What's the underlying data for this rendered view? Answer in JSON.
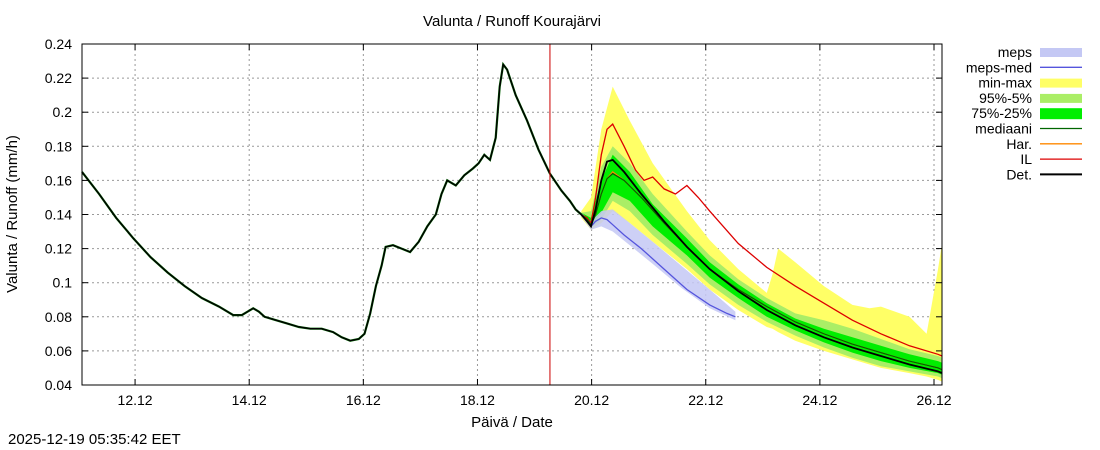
{
  "chart_data": {
    "type": "line",
    "title": "Valunta / Runoff  Kourajärvi",
    "xlabel": "Päivä / Date",
    "ylabel": "Valunta / Runoff (mm/h)",
    "ylim": [
      0.04,
      0.24
    ],
    "xlim_days": [
      0,
      15.07
    ],
    "y_ticks": [
      0.04,
      0.06,
      0.08,
      0.1,
      0.12,
      0.14,
      0.16,
      0.18,
      0.2,
      0.22,
      0.24
    ],
    "x_ticks": [
      {
        "label": "12.12",
        "day": 0.93
      },
      {
        "label": "14.12",
        "day": 2.93
      },
      {
        "label": "16.12",
        "day": 4.93
      },
      {
        "label": "18.12",
        "day": 6.93
      },
      {
        "label": "20.12",
        "day": 8.93
      },
      {
        "label": "22.12",
        "day": 10.93
      },
      {
        "label": "24.12",
        "day": 12.93
      },
      {
        "label": "26.12",
        "day": 14.93
      }
    ],
    "grid": true,
    "forecast_start_day": 8.2,
    "legend_position": "right",
    "colors": {
      "meps": "#c4c8f4",
      "meps_med": "#5555dd",
      "minmax": "#ffff66",
      "p95_5": "#aaee66",
      "p75_25": "#00ee00",
      "mediaani": "#006600",
      "har": "#ff8800",
      "il": "#dd0000",
      "det": "#000000",
      "now_line": "#cc0000",
      "grid": "#999999"
    },
    "legend": [
      {
        "key": "meps",
        "label": "meps",
        "kind": "band"
      },
      {
        "key": "meps_med",
        "label": "meps-med",
        "kind": "line"
      },
      {
        "key": "minmax",
        "label": "min-max",
        "kind": "band"
      },
      {
        "key": "p95_5",
        "label": "95%-5%",
        "kind": "band"
      },
      {
        "key": "p75_25",
        "label": "75%-25%",
        "kind": "bandthick"
      },
      {
        "key": "mediaani",
        "label": "mediaani",
        "kind": "line"
      },
      {
        "key": "har",
        "label": "Har.",
        "kind": "line"
      },
      {
        "key": "il",
        "label": "IL",
        "kind": "line"
      },
      {
        "key": "det",
        "label": "Det.",
        "kind": "thickline"
      }
    ],
    "series": {
      "observed": [
        [
          0,
          0.165
        ],
        [
          0.3,
          0.152
        ],
        [
          0.6,
          0.138
        ],
        [
          0.9,
          0.126
        ],
        [
          1.2,
          0.115
        ],
        [
          1.5,
          0.106
        ],
        [
          1.8,
          0.098
        ],
        [
          2.1,
          0.091
        ],
        [
          2.4,
          0.086
        ],
        [
          2.65,
          0.081
        ],
        [
          2.8,
          0.081
        ],
        [
          2.9,
          0.083
        ],
        [
          3.0,
          0.085
        ],
        [
          3.1,
          0.083
        ],
        [
          3.2,
          0.08
        ],
        [
          3.4,
          0.078
        ],
        [
          3.6,
          0.076
        ],
        [
          3.8,
          0.074
        ],
        [
          4.0,
          0.073
        ],
        [
          4.2,
          0.073
        ],
        [
          4.4,
          0.071
        ],
        [
          4.55,
          0.068
        ],
        [
          4.7,
          0.066
        ],
        [
          4.85,
          0.067
        ],
        [
          4.95,
          0.07
        ],
        [
          5.05,
          0.082
        ],
        [
          5.15,
          0.098
        ],
        [
          5.25,
          0.11
        ],
        [
          5.32,
          0.121
        ],
        [
          5.45,
          0.122
        ],
        [
          5.6,
          0.12
        ],
        [
          5.75,
          0.118
        ],
        [
          5.9,
          0.124
        ],
        [
          6.05,
          0.133
        ],
        [
          6.2,
          0.14
        ],
        [
          6.3,
          0.152
        ],
        [
          6.4,
          0.16
        ],
        [
          6.55,
          0.157
        ],
        [
          6.7,
          0.163
        ],
        [
          6.85,
          0.167
        ],
        [
          6.95,
          0.17
        ],
        [
          7.05,
          0.175
        ],
        [
          7.15,
          0.172
        ],
        [
          7.25,
          0.185
        ],
        [
          7.32,
          0.215
        ],
        [
          7.38,
          0.228
        ],
        [
          7.45,
          0.225
        ],
        [
          7.6,
          0.21
        ],
        [
          7.8,
          0.195
        ],
        [
          8.0,
          0.178
        ],
        [
          8.2,
          0.164
        ],
        [
          8.4,
          0.154
        ],
        [
          8.55,
          0.148
        ],
        [
          8.65,
          0.143
        ],
        [
          8.75,
          0.14
        ]
      ],
      "det": [
        [
          8.75,
          0.14
        ],
        [
          8.85,
          0.136
        ],
        [
          8.92,
          0.133
        ],
        [
          9.0,
          0.143
        ],
        [
          9.1,
          0.16
        ],
        [
          9.2,
          0.171
        ],
        [
          9.3,
          0.172
        ],
        [
          9.5,
          0.165
        ],
        [
          9.8,
          0.152
        ],
        [
          10.2,
          0.136
        ],
        [
          10.6,
          0.121
        ],
        [
          11.0,
          0.108
        ],
        [
          11.5,
          0.095
        ],
        [
          12.0,
          0.084
        ],
        [
          12.5,
          0.075
        ],
        [
          13.0,
          0.068
        ],
        [
          13.5,
          0.062
        ],
        [
          14.0,
          0.057
        ],
        [
          14.5,
          0.052
        ],
        [
          15.0,
          0.048
        ],
        [
          15.07,
          0.047
        ]
      ],
      "mediaani": [
        [
          8.75,
          0.14
        ],
        [
          8.85,
          0.137
        ],
        [
          8.92,
          0.134
        ],
        [
          9.0,
          0.14
        ],
        [
          9.1,
          0.152
        ],
        [
          9.2,
          0.161
        ],
        [
          9.3,
          0.164
        ],
        [
          9.5,
          0.16
        ],
        [
          9.8,
          0.15
        ],
        [
          10.2,
          0.135
        ],
        [
          10.6,
          0.121
        ],
        [
          11.0,
          0.108
        ],
        [
          11.5,
          0.096
        ],
        [
          12.0,
          0.086
        ],
        [
          12.5,
          0.077
        ],
        [
          13.0,
          0.07
        ],
        [
          13.5,
          0.064
        ],
        [
          14.0,
          0.059
        ],
        [
          14.5,
          0.054
        ],
        [
          15.0,
          0.05
        ],
        [
          15.07,
          0.049
        ]
      ],
      "har": [
        [
          8.75,
          0.14
        ],
        [
          8.85,
          0.137
        ],
        [
          8.92,
          0.134
        ],
        [
          9.0,
          0.14
        ],
        [
          9.1,
          0.152
        ],
        [
          9.2,
          0.161
        ],
        [
          9.3,
          0.165
        ],
        [
          9.5,
          0.16
        ],
        [
          9.8,
          0.15
        ],
        [
          10.2,
          0.135
        ],
        [
          10.6,
          0.121
        ],
        [
          11.0,
          0.108
        ],
        [
          11.5,
          0.096
        ],
        [
          12.0,
          0.086
        ],
        [
          12.5,
          0.077
        ],
        [
          13.0,
          0.07
        ],
        [
          13.5,
          0.064
        ],
        [
          14.0,
          0.059
        ],
        [
          14.5,
          0.054
        ],
        [
          15.0,
          0.05
        ],
        [
          15.07,
          0.049
        ]
      ],
      "il": [
        [
          8.75,
          0.14
        ],
        [
          8.85,
          0.138
        ],
        [
          8.92,
          0.135
        ],
        [
          9.0,
          0.15
        ],
        [
          9.1,
          0.175
        ],
        [
          9.2,
          0.19
        ],
        [
          9.3,
          0.193
        ],
        [
          9.5,
          0.18
        ],
        [
          9.7,
          0.166
        ],
        [
          9.85,
          0.16
        ],
        [
          10.0,
          0.162
        ],
        [
          10.2,
          0.155
        ],
        [
          10.4,
          0.152
        ],
        [
          10.6,
          0.157
        ],
        [
          10.8,
          0.15
        ],
        [
          11.0,
          0.142
        ],
        [
          11.5,
          0.123
        ],
        [
          12.0,
          0.109
        ],
        [
          12.5,
          0.098
        ],
        [
          13.0,
          0.088
        ],
        [
          13.5,
          0.078
        ],
        [
          14.0,
          0.07
        ],
        [
          14.5,
          0.063
        ],
        [
          15.0,
          0.058
        ],
        [
          15.07,
          0.057
        ]
      ],
      "meps_med": [
        [
          8.75,
          0.14
        ],
        [
          8.85,
          0.137
        ],
        [
          8.92,
          0.133
        ],
        [
          9.0,
          0.136
        ],
        [
          9.1,
          0.138
        ],
        [
          9.2,
          0.137
        ],
        [
          9.3,
          0.134
        ],
        [
          9.5,
          0.128
        ],
        [
          9.8,
          0.12
        ],
        [
          10.2,
          0.108
        ],
        [
          10.6,
          0.096
        ],
        [
          11.0,
          0.087
        ],
        [
          11.3,
          0.082
        ],
        [
          11.45,
          0.08
        ]
      ]
    },
    "bands": {
      "minmax": {
        "x": [
          8.75,
          8.92,
          9.1,
          9.3,
          9.6,
          10.0,
          10.6,
          11.0,
          11.5,
          12.0,
          12.1,
          12.2,
          12.5,
          13.0,
          13.5,
          13.8,
          14.0,
          14.5,
          14.8,
          15.0,
          15.07
        ],
        "high": [
          0.142,
          0.15,
          0.19,
          0.215,
          0.195,
          0.17,
          0.142,
          0.125,
          0.108,
          0.094,
          0.105,
          0.12,
          0.112,
          0.098,
          0.087,
          0.085,
          0.086,
          0.08,
          0.07,
          0.108,
          0.123
        ],
        "low": [
          0.138,
          0.131,
          0.135,
          0.142,
          0.135,
          0.124,
          0.108,
          0.096,
          0.084,
          0.074,
          0.073,
          0.071,
          0.066,
          0.06,
          0.055,
          0.052,
          0.05,
          0.047,
          0.045,
          0.043,
          0.042
        ]
      },
      "p95_5": {
        "x": [
          8.75,
          8.92,
          9.1,
          9.3,
          9.6,
          10.0,
          10.6,
          11.0,
          11.5,
          12.0,
          12.5,
          13.0,
          13.5,
          14.0,
          14.5,
          15.0,
          15.07
        ],
        "high": [
          0.141,
          0.142,
          0.168,
          0.18,
          0.17,
          0.152,
          0.13,
          0.116,
          0.102,
          0.091,
          0.082,
          0.078,
          0.073,
          0.067,
          0.061,
          0.057,
          0.056
        ],
        "low": [
          0.139,
          0.132,
          0.137,
          0.148,
          0.142,
          0.128,
          0.111,
          0.099,
          0.087,
          0.077,
          0.069,
          0.062,
          0.056,
          0.051,
          0.048,
          0.045,
          0.044
        ]
      },
      "p75_25": {
        "x": [
          8.75,
          8.92,
          9.1,
          9.3,
          9.6,
          10.0,
          10.6,
          11.0,
          11.5,
          12.0,
          12.5,
          13.0,
          13.5,
          14.0,
          14.5,
          15.0,
          15.07
        ],
        "high": [
          0.141,
          0.138,
          0.16,
          0.175,
          0.165,
          0.146,
          0.126,
          0.112,
          0.099,
          0.088,
          0.079,
          0.073,
          0.068,
          0.063,
          0.058,
          0.054,
          0.053
        ],
        "low": [
          0.139,
          0.133,
          0.141,
          0.153,
          0.148,
          0.133,
          0.116,
          0.103,
          0.091,
          0.08,
          0.072,
          0.065,
          0.059,
          0.054,
          0.05,
          0.047,
          0.046
        ]
      },
      "meps": {
        "x": [
          8.75,
          8.92,
          9.1,
          9.3,
          9.6,
          10.0,
          10.5,
          11.0,
          11.45
        ],
        "high": [
          0.141,
          0.136,
          0.142,
          0.143,
          0.135,
          0.124,
          0.11,
          0.096,
          0.083
        ],
        "low": [
          0.139,
          0.131,
          0.133,
          0.13,
          0.122,
          0.111,
          0.097,
          0.085,
          0.078
        ]
      }
    }
  },
  "footer": {
    "timestamp": "2025-12-19 05:35:42 EET"
  }
}
